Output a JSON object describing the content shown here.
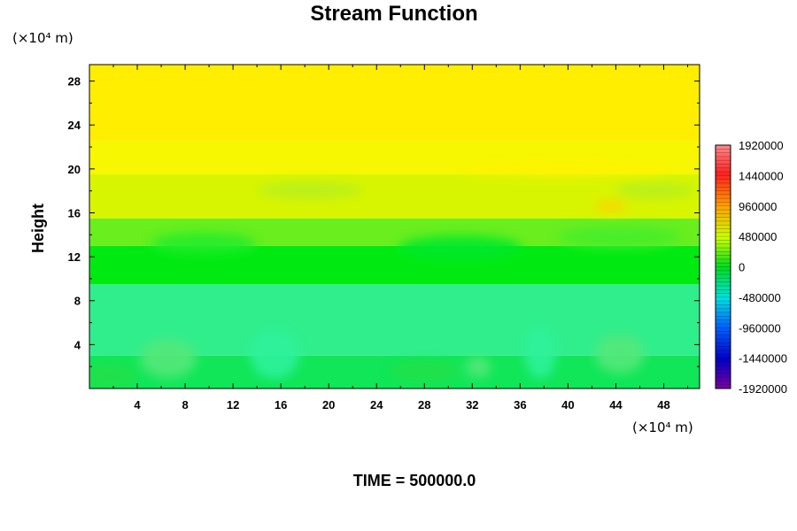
{
  "chart_data": {
    "type": "heatmap",
    "title": "Stream Function",
    "ylabel": "Height",
    "x_unit": "(×10⁴ m)",
    "y_unit": "(×10⁴ m)",
    "xlim": [
      0,
      51
    ],
    "ylim": [
      0,
      29.5
    ],
    "x_ticks": [
      "4",
      "8",
      "12",
      "16",
      "20",
      "24",
      "28",
      "32",
      "36",
      "40",
      "44",
      "48"
    ],
    "y_ticks": [
      "4",
      "8",
      "12",
      "16",
      "20",
      "24",
      "28"
    ],
    "time_label": "TIME = 500000.0",
    "colorbar": {
      "range": [
        -1920000,
        1920000
      ],
      "labels": [
        "1920000",
        "1440000",
        "960000",
        "480000",
        "0",
        "-480000",
        "-960000",
        "-1440000",
        "-1920000"
      ]
    },
    "field_bands": [
      {
        "y_from": 0,
        "y_to": 3,
        "value": -200000
      },
      {
        "y_from": 3,
        "y_to": 9.5,
        "value": -350000
      },
      {
        "y_from": 9.5,
        "y_to": 13,
        "value": 0
      },
      {
        "y_from": 13,
        "y_to": 15.5,
        "value": 150000
      },
      {
        "y_from": 15.5,
        "y_to": 19.5,
        "value": 450000
      },
      {
        "y_from": 19.5,
        "y_to": 22.5,
        "value": 650000
      },
      {
        "y_from": 22.5,
        "y_to": 29.5,
        "value": 720000
      }
    ]
  }
}
